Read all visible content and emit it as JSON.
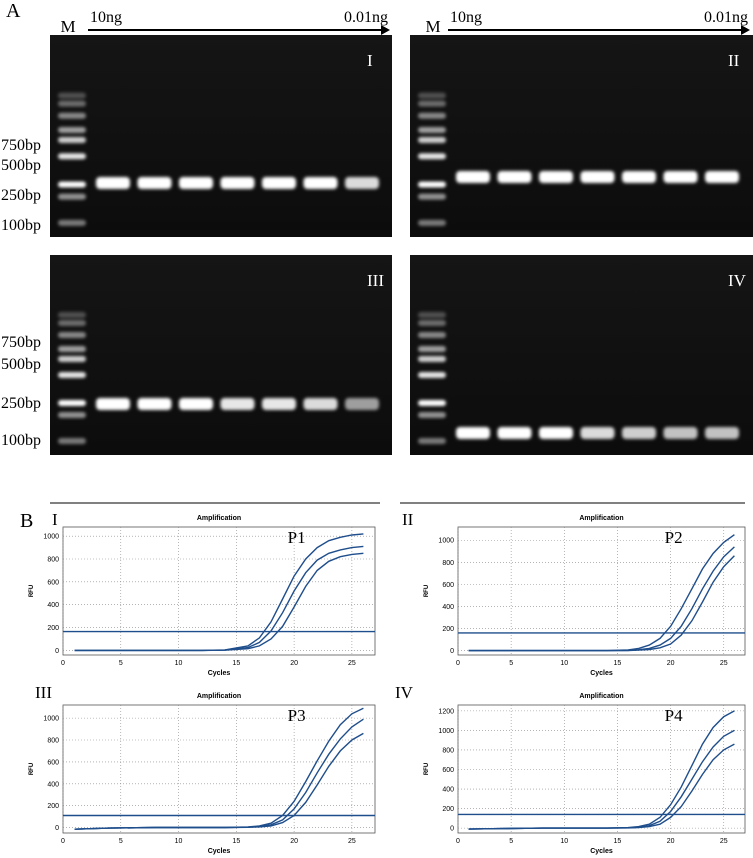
{
  "panel_a": {
    "label": "A",
    "lanes": [
      {
        "marker": "M",
        "start": "10ng",
        "end": "0.01ng"
      },
      {
        "marker": "M",
        "start": "10ng",
        "end": "0.01ng"
      }
    ],
    "ladders": [
      [
        "750bp",
        "500bp",
        "250bp",
        "100bp"
      ],
      [
        "750bp",
        "500bp",
        "250bp",
        "100bp"
      ]
    ],
    "gels": [
      "I",
      "II",
      "III",
      "IV"
    ]
  },
  "panel_b": {
    "label": "B"
  },
  "chart_data": [
    {
      "type": "line",
      "panel": "I",
      "title": "Amplification",
      "annotation": "P1",
      "x_label": "Cycles",
      "y_label": "RFU",
      "x": [
        1,
        4,
        8,
        12,
        14,
        16,
        17,
        18,
        19,
        20,
        21,
        22,
        23,
        24,
        25,
        26
      ],
      "series": [
        {
          "color": "#1f4e8c",
          "values": [
            0,
            0,
            0,
            0,
            5,
            40,
            110,
            250,
            450,
            650,
            800,
            900,
            960,
            990,
            1010,
            1020
          ]
        },
        {
          "color": "#1f4e8c",
          "values": [
            0,
            0,
            0,
            0,
            3,
            25,
            70,
            170,
            330,
            520,
            680,
            790,
            850,
            880,
            900,
            910
          ]
        },
        {
          "color": "#1f4e8c",
          "values": [
            0,
            0,
            0,
            0,
            2,
            15,
            40,
            100,
            210,
            380,
            560,
            700,
            780,
            820,
            840,
            850
          ]
        }
      ],
      "threshold": 165,
      "threshold_color": "#1f4e8c",
      "xlim": [
        0,
        27
      ],
      "xticks": [
        0,
        5,
        10,
        15,
        20,
        25
      ],
      "ylim": [
        -40,
        1080
      ],
      "yticks": [
        0,
        200,
        400,
        600,
        800,
        1000
      ],
      "grid": true
    },
    {
      "type": "line",
      "panel": "II",
      "title": "Amplification",
      "annotation": "P2",
      "x_label": "Cycles",
      "y_label": "RFU",
      "x": [
        1,
        4,
        8,
        12,
        14,
        16,
        17,
        18,
        19,
        20,
        21,
        22,
        23,
        24,
        25,
        26
      ],
      "series": [
        {
          "color": "#1f4e8c",
          "values": [
            0,
            0,
            0,
            0,
            0,
            5,
            20,
            50,
            110,
            220,
            380,
            560,
            740,
            880,
            980,
            1050
          ]
        },
        {
          "color": "#1f4e8c",
          "values": [
            0,
            0,
            0,
            0,
            0,
            2,
            8,
            20,
            50,
            110,
            220,
            380,
            560,
            720,
            850,
            940
          ]
        },
        {
          "color": "#1f4e8c",
          "values": [
            0,
            0,
            0,
            0,
            0,
            1,
            4,
            10,
            25,
            60,
            140,
            270,
            440,
            620,
            760,
            860
          ]
        }
      ],
      "threshold": 160,
      "threshold_color": "#1f4e8c",
      "xlim": [
        0,
        27
      ],
      "xticks": [
        0,
        5,
        10,
        15,
        20,
        25
      ],
      "ylim": [
        -40,
        1120
      ],
      "yticks": [
        0,
        200,
        400,
        600,
        800,
        1000
      ],
      "grid": true
    },
    {
      "type": "line",
      "panel": "III",
      "title": "Amplification",
      "annotation": "P3",
      "x_label": "Cycles",
      "y_label": "RFU",
      "x": [
        1,
        4,
        8,
        12,
        14,
        16,
        17,
        18,
        19,
        20,
        21,
        22,
        23,
        24,
        25,
        26
      ],
      "series": [
        {
          "color": "#1f4e8c",
          "values": [
            -15,
            -5,
            0,
            0,
            0,
            5,
            15,
            40,
            110,
            240,
            420,
            610,
            790,
            940,
            1040,
            1090
          ]
        },
        {
          "color": "#1f4e8c",
          "values": [
            -15,
            -5,
            0,
            0,
            0,
            3,
            10,
            25,
            70,
            170,
            320,
            500,
            670,
            810,
            920,
            990
          ]
        },
        {
          "color": "#1f4e8c",
          "values": [
            -15,
            -5,
            0,
            0,
            0,
            2,
            6,
            15,
            45,
            110,
            230,
            390,
            560,
            700,
            800,
            860
          ]
        }
      ],
      "threshold": 110,
      "threshold_color": "#1f4e8c",
      "xlim": [
        0,
        27
      ],
      "xticks": [
        0,
        5,
        10,
        15,
        20,
        25
      ],
      "ylim": [
        -50,
        1120
      ],
      "yticks": [
        0,
        200,
        400,
        600,
        800,
        1000
      ],
      "grid": true
    },
    {
      "type": "line",
      "panel": "IV",
      "title": "Amplification",
      "annotation": "P4",
      "x_label": "Cycles",
      "y_label": "RFU",
      "x": [
        1,
        4,
        8,
        12,
        14,
        16,
        17,
        18,
        19,
        20,
        21,
        22,
        23,
        24,
        25,
        26
      ],
      "series": [
        {
          "color": "#1f4e8c",
          "values": [
            -10,
            -5,
            0,
            0,
            0,
            5,
            15,
            40,
            110,
            240,
            420,
            640,
            860,
            1030,
            1140,
            1200
          ]
        },
        {
          "color": "#1f4e8c",
          "values": [
            -10,
            -5,
            0,
            0,
            0,
            3,
            8,
            25,
            70,
            170,
            320,
            500,
            680,
            830,
            940,
            1000
          ]
        },
        {
          "color": "#1f4e8c",
          "values": [
            -10,
            -5,
            0,
            0,
            0,
            2,
            5,
            15,
            40,
            110,
            220,
            380,
            550,
            700,
            800,
            860
          ]
        }
      ],
      "threshold": 140,
      "threshold_color": "#1f4e8c",
      "xlim": [
        0,
        27
      ],
      "xticks": [
        0,
        5,
        10,
        15,
        20,
        25
      ],
      "ylim": [
        -50,
        1260
      ],
      "yticks": [
        0,
        200,
        400,
        600,
        800,
        1000,
        1200
      ],
      "grid": true
    }
  ]
}
